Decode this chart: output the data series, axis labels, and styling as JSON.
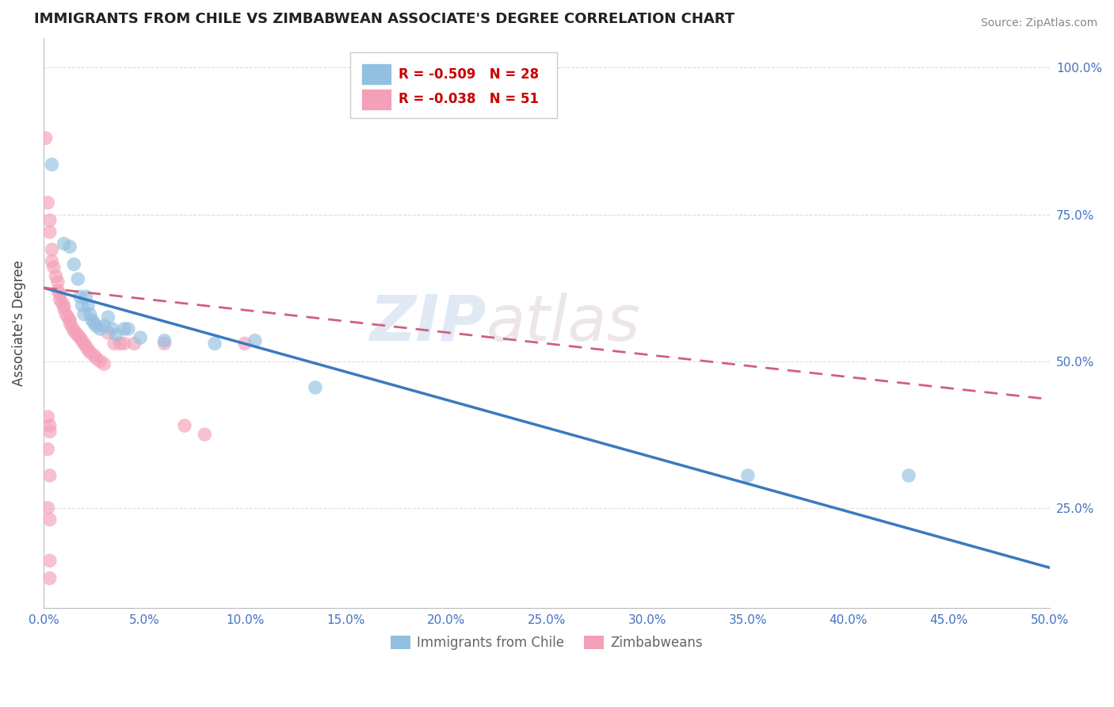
{
  "title": "IMMIGRANTS FROM CHILE VS ZIMBABWEAN ASSOCIATE'S DEGREE CORRELATION CHART",
  "source": "Source: ZipAtlas.com",
  "ylabel": "Associate's Degree",
  "legend_blue_r": "R = -0.509",
  "legend_blue_n": "N = 28",
  "legend_pink_r": "R = -0.038",
  "legend_pink_n": "N = 51",
  "watermark_zip": "ZIP",
  "watermark_atlas": "atlas",
  "blue_color": "#92c0e0",
  "pink_color": "#f4a0b8",
  "blue_line_color": "#3a7abf",
  "pink_line_color": "#d06080",
  "xmin": 0.0,
  "xmax": 0.5,
  "ymin": 0.08,
  "ymax": 1.05,
  "yticks": [
    0.25,
    0.5,
    0.75,
    1.0
  ],
  "xticks": [
    0.0,
    0.05,
    0.1,
    0.15,
    0.2,
    0.25,
    0.3,
    0.35,
    0.4,
    0.45,
    0.5
  ],
  "blue_line": [
    [
      0.0,
      0.625
    ],
    [
      0.5,
      0.148
    ]
  ],
  "pink_line": [
    [
      0.0,
      0.625
    ],
    [
      0.5,
      0.435
    ]
  ],
  "blue_dots": [
    [
      0.004,
      0.835
    ],
    [
      0.01,
      0.7
    ],
    [
      0.013,
      0.695
    ],
    [
      0.015,
      0.665
    ],
    [
      0.017,
      0.64
    ],
    [
      0.018,
      0.61
    ],
    [
      0.019,
      0.595
    ],
    [
      0.02,
      0.58
    ],
    [
      0.021,
      0.61
    ],
    [
      0.022,
      0.595
    ],
    [
      0.023,
      0.58
    ],
    [
      0.024,
      0.57
    ],
    [
      0.025,
      0.565
    ],
    [
      0.026,
      0.56
    ],
    [
      0.028,
      0.555
    ],
    [
      0.03,
      0.56
    ],
    [
      0.032,
      0.575
    ],
    [
      0.034,
      0.555
    ],
    [
      0.036,
      0.545
    ],
    [
      0.04,
      0.555
    ],
    [
      0.042,
      0.555
    ],
    [
      0.048,
      0.54
    ],
    [
      0.06,
      0.535
    ],
    [
      0.085,
      0.53
    ],
    [
      0.105,
      0.535
    ],
    [
      0.135,
      0.455
    ],
    [
      0.35,
      0.305
    ],
    [
      0.43,
      0.305
    ]
  ],
  "pink_dots": [
    [
      0.001,
      0.88
    ],
    [
      0.002,
      0.77
    ],
    [
      0.003,
      0.74
    ],
    [
      0.003,
      0.72
    ],
    [
      0.004,
      0.69
    ],
    [
      0.004,
      0.67
    ],
    [
      0.005,
      0.66
    ],
    [
      0.006,
      0.645
    ],
    [
      0.007,
      0.635
    ],
    [
      0.007,
      0.62
    ],
    [
      0.008,
      0.615
    ],
    [
      0.008,
      0.605
    ],
    [
      0.009,
      0.6
    ],
    [
      0.01,
      0.595
    ],
    [
      0.01,
      0.59
    ],
    [
      0.011,
      0.58
    ],
    [
      0.012,
      0.575
    ],
    [
      0.013,
      0.57
    ],
    [
      0.013,
      0.565
    ],
    [
      0.014,
      0.558
    ],
    [
      0.015,
      0.552
    ],
    [
      0.016,
      0.548
    ],
    [
      0.017,
      0.544
    ],
    [
      0.018,
      0.54
    ],
    [
      0.019,
      0.535
    ],
    [
      0.02,
      0.53
    ],
    [
      0.021,
      0.525
    ],
    [
      0.022,
      0.52
    ],
    [
      0.023,
      0.515
    ],
    [
      0.025,
      0.51
    ],
    [
      0.026,
      0.505
    ],
    [
      0.028,
      0.5
    ],
    [
      0.03,
      0.495
    ],
    [
      0.032,
      0.548
    ],
    [
      0.035,
      0.53
    ],
    [
      0.038,
      0.53
    ],
    [
      0.04,
      0.53
    ],
    [
      0.045,
      0.53
    ],
    [
      0.06,
      0.53
    ],
    [
      0.07,
      0.39
    ],
    [
      0.08,
      0.375
    ],
    [
      0.1,
      0.53
    ],
    [
      0.002,
      0.405
    ],
    [
      0.003,
      0.39
    ],
    [
      0.003,
      0.38
    ],
    [
      0.002,
      0.35
    ],
    [
      0.003,
      0.305
    ],
    [
      0.002,
      0.25
    ],
    [
      0.003,
      0.23
    ],
    [
      0.003,
      0.16
    ],
    [
      0.003,
      0.13
    ]
  ]
}
